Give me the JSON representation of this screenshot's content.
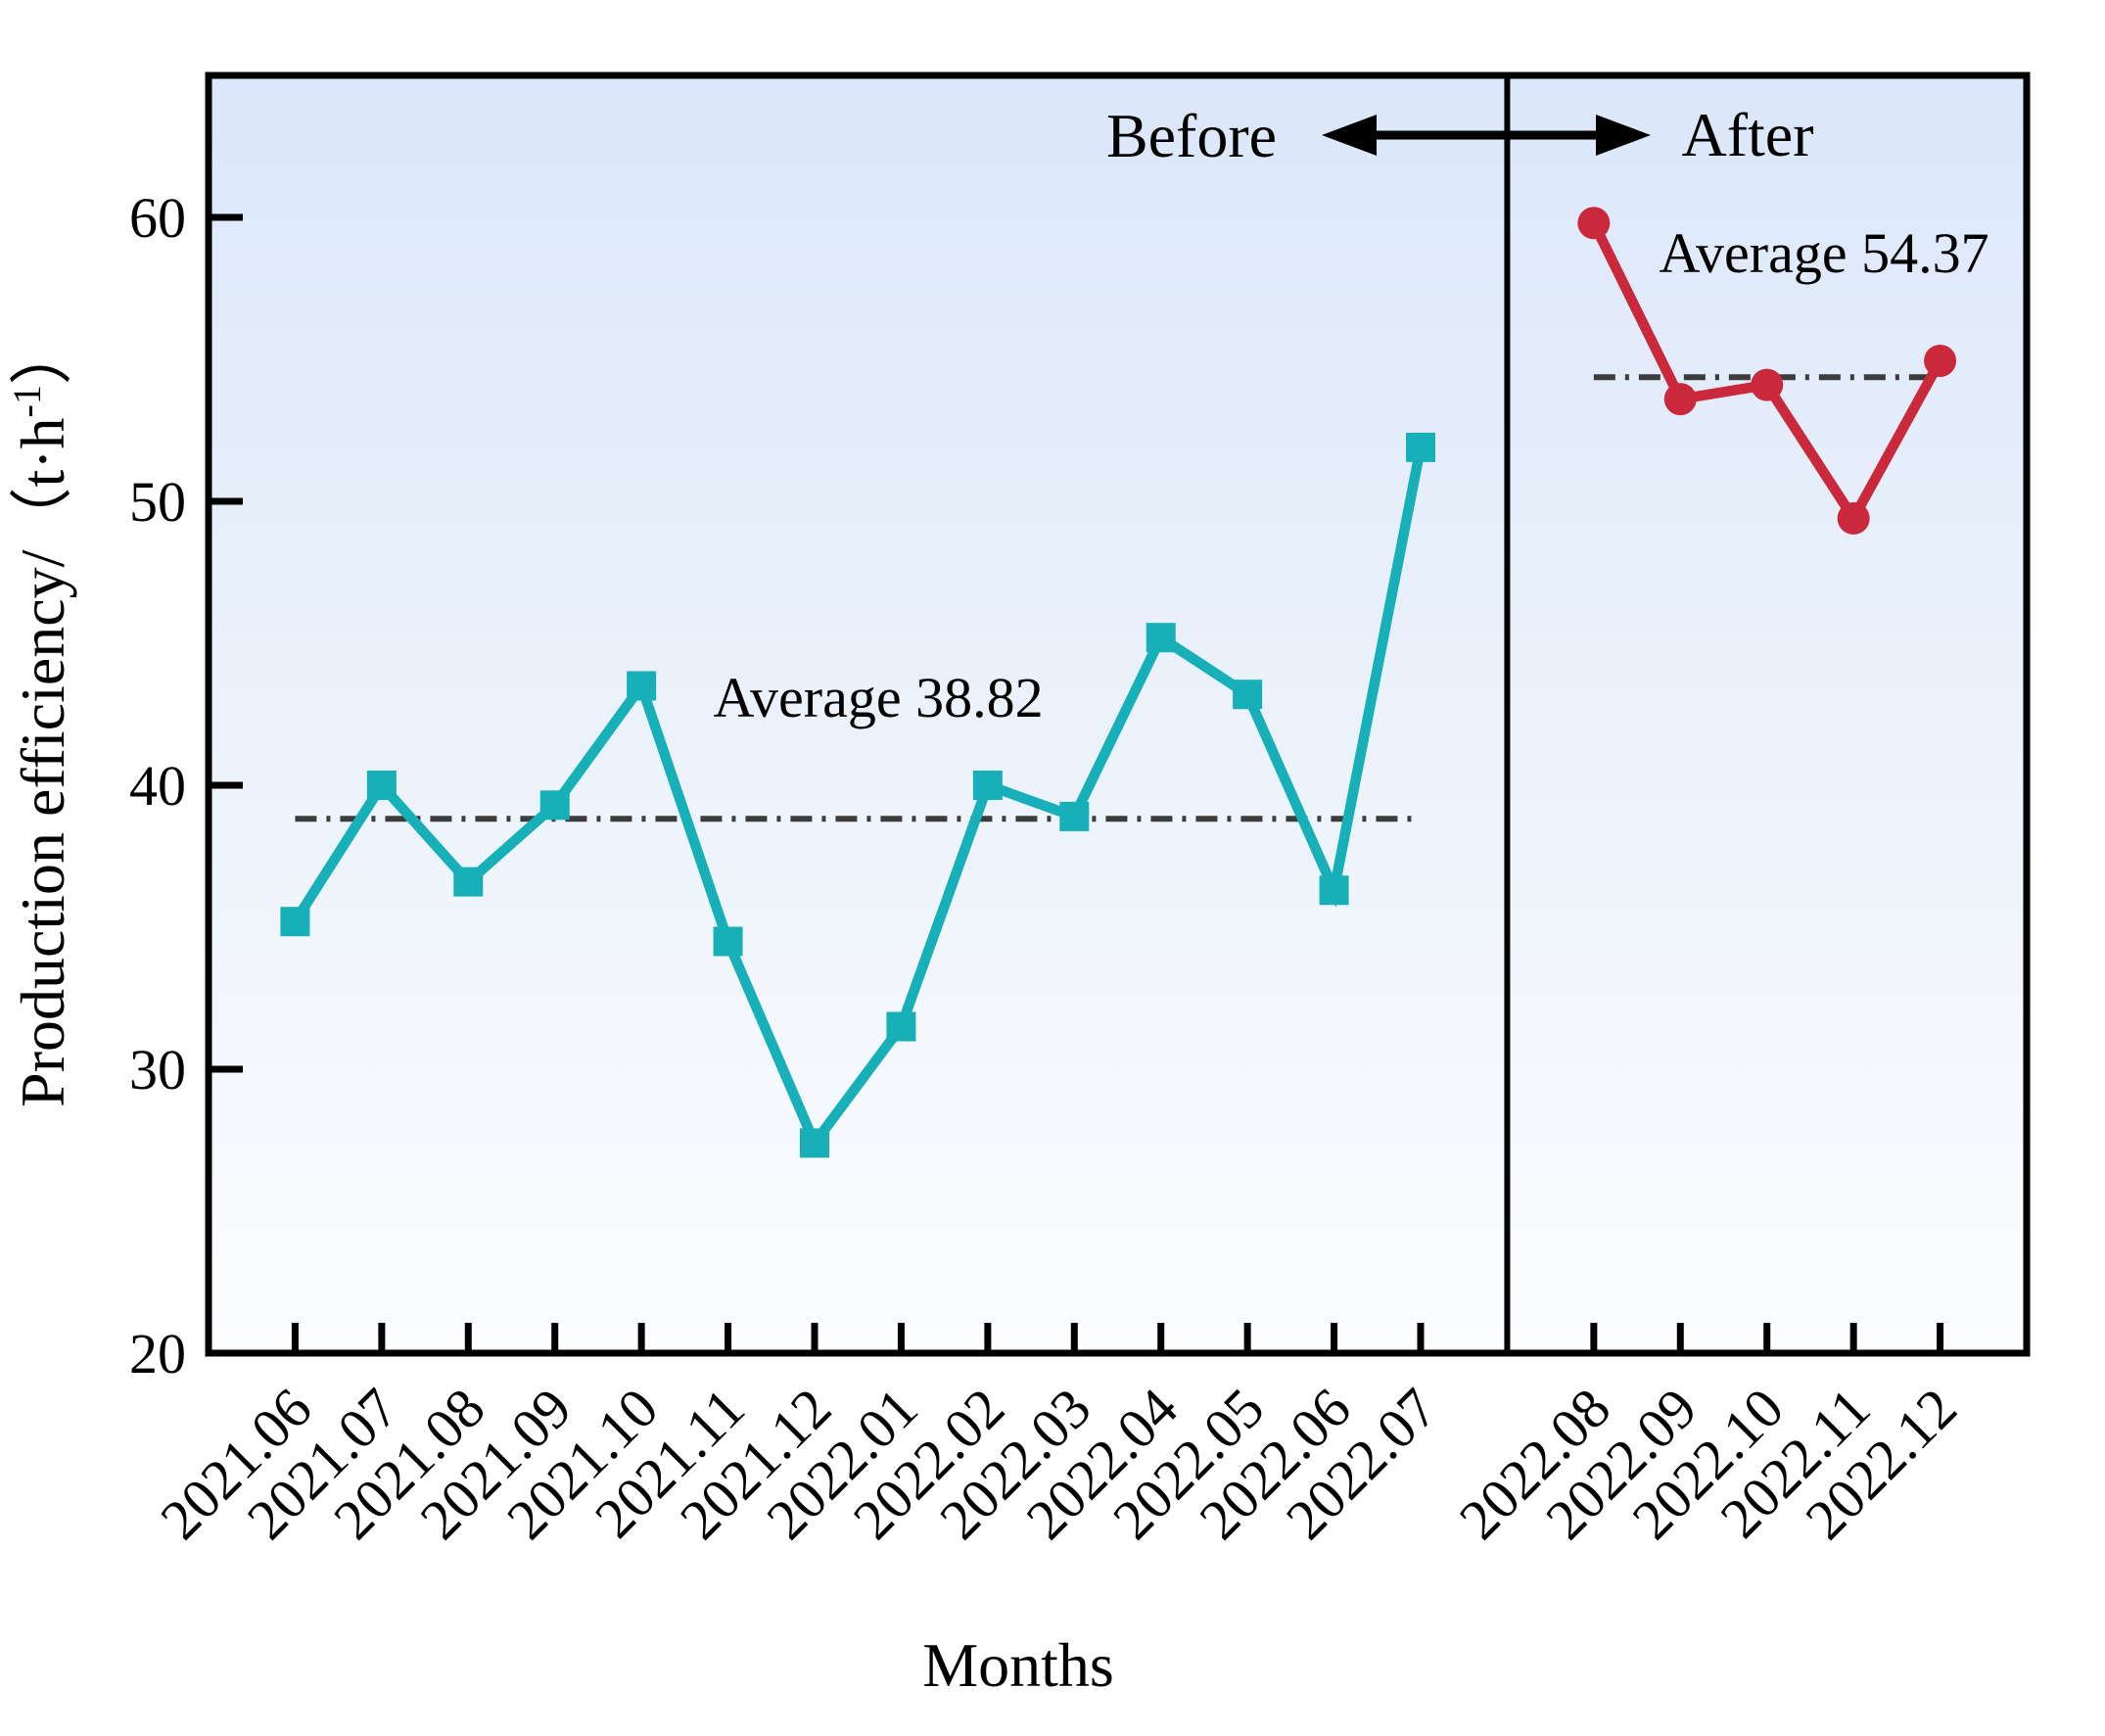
{
  "chart_data": {
    "type": "line",
    "xlabel": "Months",
    "ylabel": "Production efficiency/（t·h⁻¹）",
    "ylim": [
      20,
      65
    ],
    "y_ticks": [
      20,
      30,
      40,
      50,
      60
    ],
    "grid": false,
    "legend_position": "none",
    "background_gradient": {
      "top": "#dbe7fa",
      "middle": "#edf3fb",
      "bottom": "#fcfdff"
    },
    "average_line_color": "#3c3c3c",
    "average_line_style": "dash-dot",
    "divider_color": "#000000",
    "arrow_color": "#000000",
    "sections": [
      {
        "label": "Before",
        "color": "#17afb8",
        "marker": "square",
        "categories": [
          "2021.06",
          "2021.07",
          "2021.08",
          "2021.09",
          "2021.10",
          "2021.11",
          "2021.12",
          "2022.01",
          "2022.02",
          "2022.03",
          "2022.04",
          "2022.05",
          "2022.06",
          "2022.07"
        ],
        "values": [
          35.2,
          40.0,
          36.6,
          39.3,
          43.5,
          34.5,
          27.4,
          31.5,
          40.0,
          38.9,
          45.2,
          43.2,
          36.3,
          51.9
        ],
        "average": 38.82,
        "average_text": "Average 38.82"
      },
      {
        "label": "After",
        "color": "#c9293b",
        "marker": "circle",
        "categories": [
          "2022.08",
          "2022.09",
          "2022.10",
          "2022.11",
          "2022.12"
        ],
        "values": [
          59.8,
          53.6,
          54.1,
          49.4,
          54.95
        ],
        "average": 54.37,
        "average_text": "Average 54.37"
      }
    ]
  }
}
